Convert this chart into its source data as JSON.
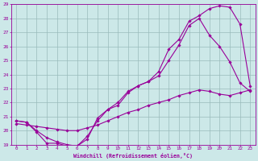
{
  "xlabel": "Windchill (Refroidissement éolien,°C)",
  "bg_color": "#cce8e8",
  "line_color": "#990099",
  "grid_color": "#99bbbb",
  "xlim": [
    -0.5,
    23.5
  ],
  "ylim": [
    19,
    29
  ],
  "xticks": [
    0,
    1,
    2,
    3,
    4,
    5,
    6,
    7,
    8,
    9,
    10,
    11,
    12,
    13,
    14,
    15,
    16,
    17,
    18,
    19,
    20,
    21,
    22,
    23
  ],
  "yticks": [
    19,
    20,
    21,
    22,
    23,
    24,
    25,
    26,
    27,
    28,
    29
  ],
  "series": [
    {
      "x": [
        0,
        1,
        2,
        3,
        4,
        5,
        6,
        7,
        8,
        9,
        10,
        11,
        12,
        13,
        14,
        15,
        16,
        17,
        18,
        19,
        20,
        21,
        22,
        23
      ],
      "y": [
        20.7,
        20.6,
        20.0,
        19.5,
        19.2,
        19.0,
        18.9,
        19.6,
        20.7,
        21.5,
        22.0,
        22.8,
        23.2,
        23.5,
        24.2,
        25.8,
        26.5,
        27.8,
        28.2,
        28.7,
        28.9,
        28.8,
        27.6,
        23.2
      ]
    },
    {
      "x": [
        0,
        1,
        2,
        3,
        4,
        5,
        6,
        7,
        8,
        9,
        10,
        11,
        12,
        13,
        14,
        15,
        16,
        17,
        18,
        19,
        20,
        21,
        22,
        23
      ],
      "y": [
        20.7,
        20.6,
        19.9,
        19.1,
        19.1,
        18.9,
        18.9,
        19.4,
        20.9,
        21.5,
        21.8,
        22.7,
        23.2,
        23.5,
        23.9,
        25.0,
        26.1,
        27.5,
        28.0,
        26.8,
        26.0,
        24.9,
        23.4,
        22.8
      ]
    },
    {
      "x": [
        0,
        1,
        2,
        3,
        4,
        5,
        6,
        7,
        8,
        9,
        10,
        11,
        12,
        13,
        14,
        15,
        16,
        17,
        18,
        19,
        20,
        21,
        22,
        23
      ],
      "y": [
        20.5,
        20.4,
        20.3,
        20.2,
        20.1,
        20.0,
        20.0,
        20.2,
        20.4,
        20.7,
        21.0,
        21.3,
        21.5,
        21.8,
        22.0,
        22.2,
        22.5,
        22.7,
        22.9,
        22.8,
        22.6,
        22.5,
        22.7,
        22.9
      ]
    }
  ]
}
